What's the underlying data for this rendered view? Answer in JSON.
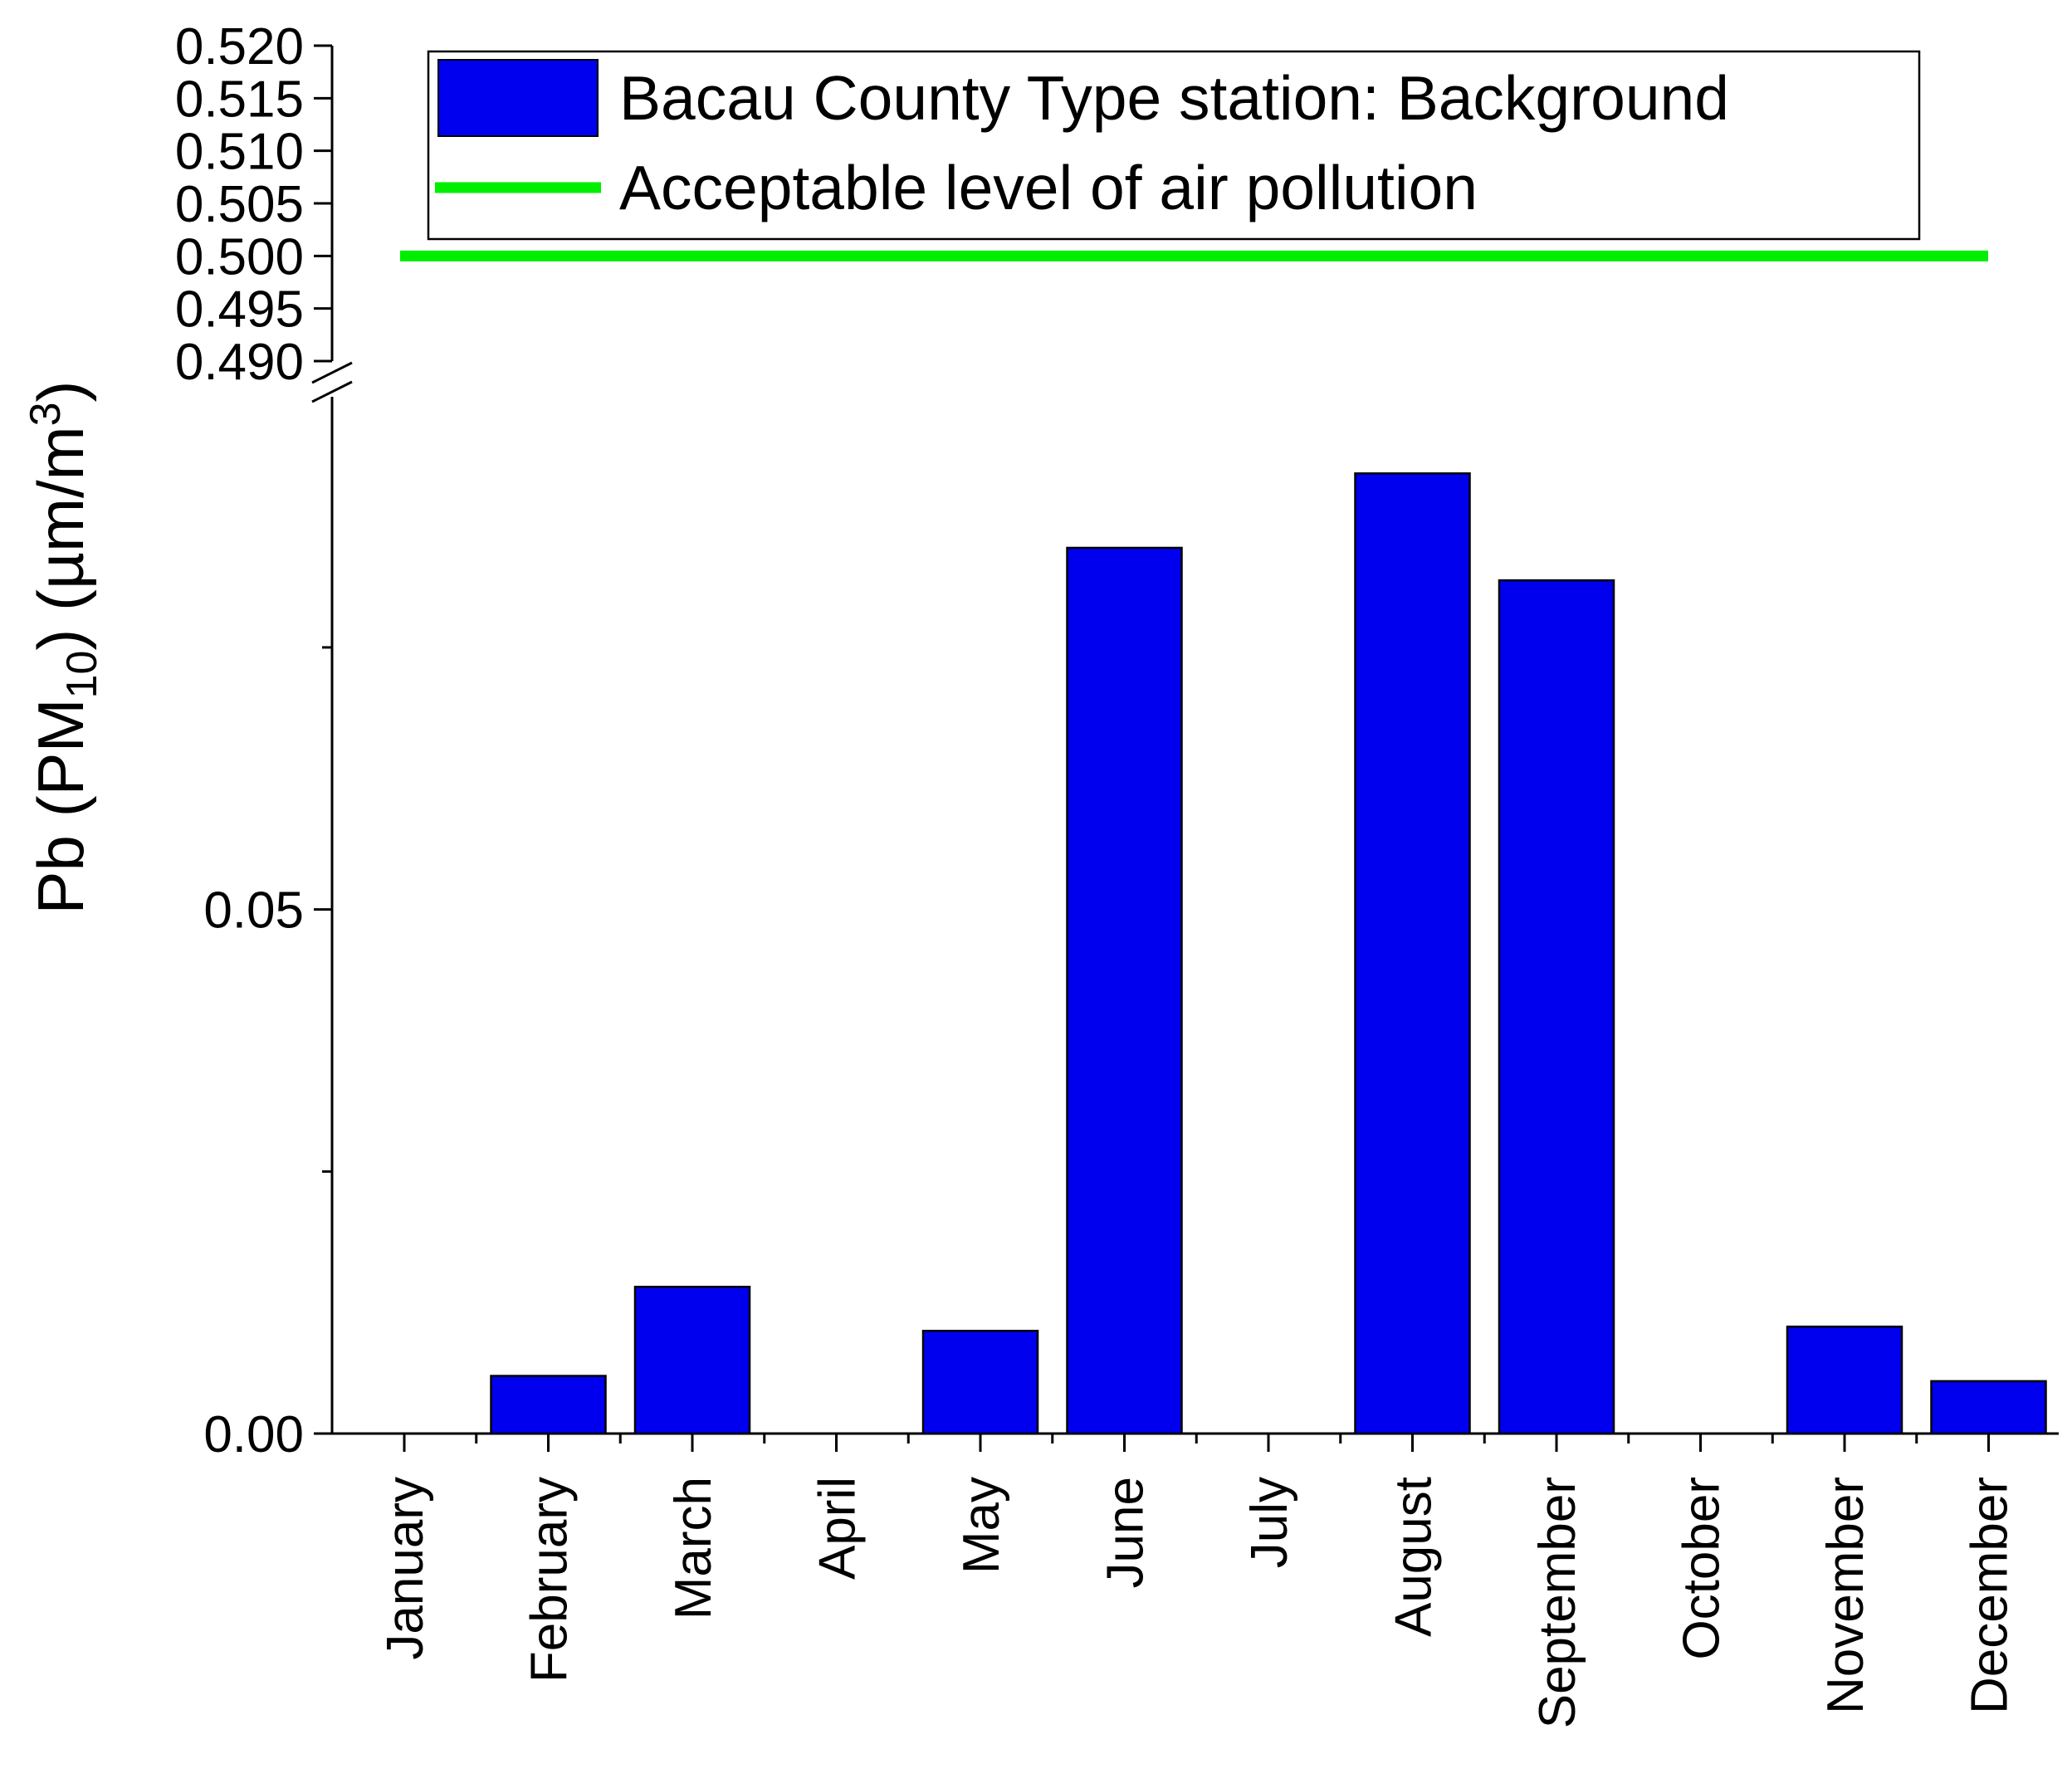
{
  "chart_data": {
    "type": "bar",
    "title": "",
    "xlabel": "",
    "ylabel": "Pb (PM10) (µm/m3)",
    "ylabel_parts": {
      "main": "Pb (PM",
      "sub": "10",
      "mid": ") (µm/m",
      "sup": "3",
      "end": ")"
    },
    "categories": [
      "January",
      "February",
      "March",
      "April",
      "May",
      "June",
      "July",
      "August",
      "September",
      "October",
      "November",
      "December"
    ],
    "series": [
      {
        "name": "Bacau County Type station: Background",
        "color": "#0000ee",
        "values": [
          0,
          0.0055,
          0.014,
          0,
          0.0098,
          0.0845,
          0,
          0.0916,
          0.0814,
          0,
          0.0102,
          0.005
        ]
      }
    ],
    "reference_line": {
      "name": "Acceptable level of air pollution",
      "value": 0.5,
      "color": "#00ee00"
    },
    "y_axis_broken": true,
    "ylim_lower": [
      0,
      0.094
    ],
    "ylim_upper": [
      0.49,
      0.52
    ],
    "lower_ticks": [
      "0.00",
      "0.05"
    ],
    "upper_ticks": [
      "0.490",
      "0.495",
      "0.500",
      "0.505",
      "0.510",
      "0.515",
      "0.520"
    ],
    "legend_position": "top",
    "grid": false
  }
}
